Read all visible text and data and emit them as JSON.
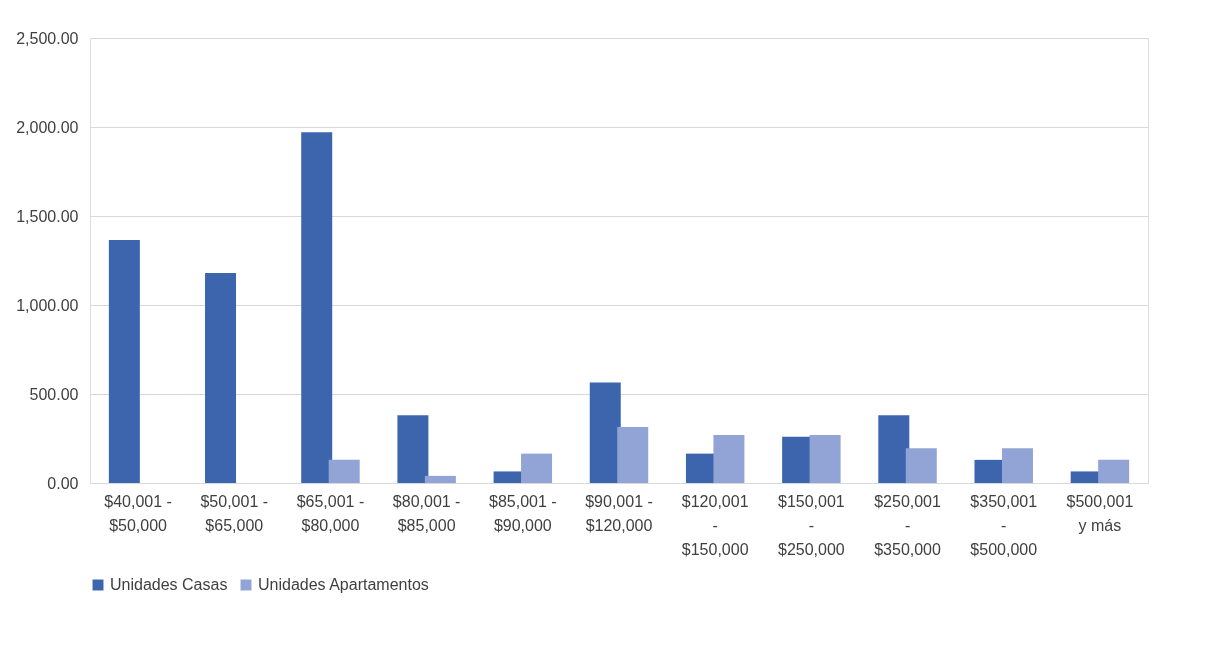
{
  "chart_data": {
    "type": "bar",
    "categories": [
      "$40,001 - $50,000",
      "$50,001 - $65,000",
      "$65,001 - $80,000",
      "$80,001 - $85,000",
      "$85,001 - $90,000",
      "$90,001 - $120,000",
      "$120,001 - $150,000",
      "$150,001 - $250,000",
      "$250,001 - $350,000",
      "$350,001 - $500,000",
      "$500,001 y más"
    ],
    "series": [
      {
        "name": "Unidades Casas",
        "color": "#3c65ae",
        "values": [
          1365,
          1180,
          1970,
          380,
          65,
          565,
          165,
          260,
          380,
          130,
          65
        ]
      },
      {
        "name": "Unidades Apartamentos",
        "color": "#91a4d5",
        "values": [
          null,
          null,
          130,
          40,
          165,
          315,
          270,
          270,
          195,
          195,
          130
        ]
      }
    ],
    "ylim": [
      0,
      2500
    ],
    "yticks": [
      {
        "value": 0,
        "label": "0.00"
      },
      {
        "value": 500,
        "label": "500.00"
      },
      {
        "value": 1000,
        "label": "1,000.00"
      },
      {
        "value": 1500,
        "label": "1,500.00"
      },
      {
        "value": 2000,
        "label": "2,000.00"
      },
      {
        "value": 2500,
        "label": "2,500.00"
      }
    ],
    "grid": "y",
    "legend": "bottom"
  }
}
